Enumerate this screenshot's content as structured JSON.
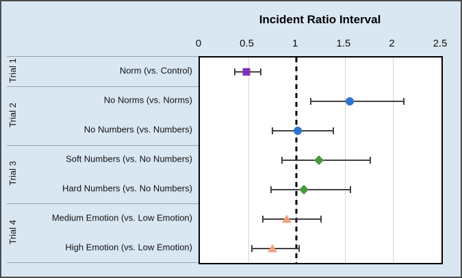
{
  "chart_data": {
    "type": "scatter",
    "subtype": "forest-plot",
    "title": "Incident Ratio Interval",
    "xlabel": "",
    "ylabel": "",
    "xlim": [
      0,
      2.5
    ],
    "x_ticks": [
      "0",
      "0.5",
      "1",
      "1.5",
      "2",
      "2.5"
    ],
    "x_tick_values": [
      0,
      0.5,
      1,
      1.5,
      2,
      2.5
    ],
    "gridline_values": [
      0.5,
      1,
      1.5,
      2
    ],
    "reference_line_x": 1,
    "grid": "vertical-only",
    "legend": "none",
    "groups": [
      {
        "label": "Trial 1",
        "row_indices": [
          0
        ]
      },
      {
        "label": "Trial 2",
        "row_indices": [
          1,
          2
        ]
      },
      {
        "label": "Trial 3",
        "row_indices": [
          3,
          4
        ]
      },
      {
        "label": "Trial 4",
        "row_indices": [
          5,
          6
        ]
      }
    ],
    "rows": [
      {
        "label": "Norm (vs. Control)",
        "estimate": 0.48,
        "ci_low": 0.36,
        "ci_high": 0.63,
        "marker": "square",
        "color": "#7e32b8"
      },
      {
        "label": "No Norms (vs. Norms)",
        "estimate": 1.55,
        "ci_low": 1.15,
        "ci_high": 2.11,
        "marker": "circle",
        "color": "#2e75cc"
      },
      {
        "label": "No Numbers (vs. Numbers)",
        "estimate": 1.01,
        "ci_low": 0.75,
        "ci_high": 1.38,
        "marker": "circle",
        "color": "#2e75cc"
      },
      {
        "label": "Soft Numbers (vs. No Numbers)",
        "estimate": 1.23,
        "ci_low": 0.85,
        "ci_high": 1.76,
        "marker": "diamond",
        "color": "#4a9641"
      },
      {
        "label": "Hard Numbers (vs. No Numbers)",
        "estimate": 1.08,
        "ci_low": 0.74,
        "ci_high": 1.56,
        "marker": "diamond",
        "color": "#4a9641"
      },
      {
        "label": "Medium Emotion (vs. Low Emotion)",
        "estimate": 0.9,
        "ci_low": 0.65,
        "ci_high": 1.25,
        "marker": "triangle",
        "color": "#f0a17e"
      },
      {
        "label": "High Emotion (vs. Low Emotion)",
        "estimate": 0.75,
        "ci_low": 0.54,
        "ci_high": 1.03,
        "marker": "triangle",
        "color": "#f0a17e"
      }
    ],
    "colors": {
      "background": "#d9e7f3",
      "plot_background": "#ffffff",
      "plot_border": "#000000",
      "outer_border": "#4c4c4c",
      "gridline": "#d6d6d6",
      "reference_line": "#000000",
      "error_bar": "#3f3f3f",
      "separator": "#97a2ab",
      "text": "#111111"
    }
  }
}
